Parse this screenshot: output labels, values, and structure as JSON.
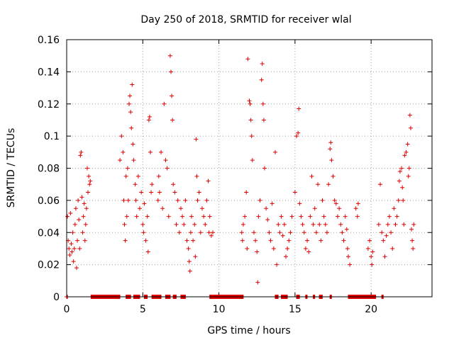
{
  "chart_data": {
    "type": "scatter",
    "title": "Day 250 of 2018, SRMTID for receiver wlal",
    "xlabel": "GPS time / hours",
    "ylabel": "SRMTID / TECUs",
    "xlim": [
      0,
      24
    ],
    "ylim": [
      0,
      0.16
    ],
    "x_ticks": [
      0,
      5,
      10,
      15,
      20
    ],
    "x_tick_labels": [
      "0",
      "5",
      "10",
      "15",
      "20"
    ],
    "y_ticks": [
      0,
      0.02,
      0.04,
      0.06,
      0.08,
      0.1,
      0.12,
      0.14,
      0.16
    ],
    "y_tick_labels": [
      "0",
      "0.02",
      "0.04",
      "0.06",
      "0.08",
      "0.1",
      "0.12",
      "0.14",
      "0.16"
    ],
    "grid": true,
    "marker": "+",
    "color": "#dd0000",
    "series": [
      {
        "name": "SRMTID",
        "points": [
          [
            0.0,
            0.0
          ],
          [
            0.05,
            0.05
          ],
          [
            0.1,
            0.035
          ],
          [
            0.15,
            0.03
          ],
          [
            0.2,
            0.026
          ],
          [
            0.25,
            0.052
          ],
          [
            0.3,
            0.033
          ],
          [
            0.35,
            0.028
          ],
          [
            0.4,
            0.04
          ],
          [
            0.45,
            0.022
          ],
          [
            0.5,
            0.03
          ],
          [
            0.55,
            0.045
          ],
          [
            0.6,
            0.055
          ],
          [
            0.65,
            0.018
          ],
          [
            0.7,
            0.035
          ],
          [
            0.75,
            0.06
          ],
          [
            0.8,
            0.048
          ],
          [
            0.85,
            0.03
          ],
          [
            0.9,
            0.088
          ],
          [
            0.95,
            0.09
          ],
          [
            1.0,
            0.062
          ],
          [
            1.05,
            0.04
          ],
          [
            1.1,
            0.05
          ],
          [
            1.15,
            0.058
          ],
          [
            1.2,
            0.035
          ],
          [
            1.25,
            0.045
          ],
          [
            1.3,
            0.055
          ],
          [
            1.35,
            0.08
          ],
          [
            1.4,
            0.065
          ],
          [
            1.45,
            0.075
          ],
          [
            1.5,
            0.07
          ],
          [
            1.55,
            0.072
          ],
          [
            3.5,
            0.085
          ],
          [
            3.6,
            0.1
          ],
          [
            3.7,
            0.09
          ],
          [
            3.75,
            0.06
          ],
          [
            3.8,
            0.045
          ],
          [
            3.85,
            0.035
          ],
          [
            3.9,
            0.075
          ],
          [
            3.95,
            0.05
          ],
          [
            4.0,
            0.08
          ],
          [
            4.05,
            0.06
          ],
          [
            4.1,
            0.12
          ],
          [
            4.15,
            0.125
          ],
          [
            4.2,
            0.115
          ],
          [
            4.25,
            0.105
          ],
          [
            4.3,
            0.132
          ],
          [
            4.35,
            0.095
          ],
          [
            4.4,
            0.085
          ],
          [
            4.5,
            0.07
          ],
          [
            4.55,
            0.06
          ],
          [
            4.6,
            0.05
          ],
          [
            4.7,
            0.075
          ],
          [
            4.8,
            0.055
          ],
          [
            4.9,
            0.065
          ],
          [
            5.0,
            0.045
          ],
          [
            5.05,
            0.04
          ],
          [
            5.1,
            0.058
          ],
          [
            5.2,
            0.035
          ],
          [
            5.3,
            0.05
          ],
          [
            5.35,
            0.028
          ],
          [
            5.4,
            0.11
          ],
          [
            5.45,
            0.112
          ],
          [
            5.5,
            0.09
          ],
          [
            5.55,
            0.065
          ],
          [
            5.6,
            0.07
          ],
          [
            6.0,
            0.06
          ],
          [
            6.05,
            0.075
          ],
          [
            6.1,
            0.065
          ],
          [
            6.2,
            0.09
          ],
          [
            6.3,
            0.055
          ],
          [
            6.4,
            0.12
          ],
          [
            6.5,
            0.085
          ],
          [
            6.6,
            0.08
          ],
          [
            6.7,
            0.05
          ],
          [
            6.8,
            0.15
          ],
          [
            6.85,
            0.14
          ],
          [
            6.9,
            0.125
          ],
          [
            6.95,
            0.11
          ],
          [
            7.0,
            0.07
          ],
          [
            7.1,
            0.065
          ],
          [
            7.2,
            0.045
          ],
          [
            7.3,
            0.06
          ],
          [
            7.4,
            0.04
          ],
          [
            7.5,
            0.055
          ],
          [
            7.6,
            0.05
          ],
          [
            7.7,
            0.045
          ],
          [
            7.8,
            0.06
          ],
          [
            7.9,
            0.035
          ],
          [
            8.0,
            0.03
          ],
          [
            8.05,
            0.022
          ],
          [
            8.1,
            0.016
          ],
          [
            8.15,
            0.04
          ],
          [
            8.2,
            0.05
          ],
          [
            8.3,
            0.035
          ],
          [
            8.4,
            0.045
          ],
          [
            8.45,
            0.025
          ],
          [
            8.5,
            0.098
          ],
          [
            8.55,
            0.075
          ],
          [
            8.6,
            0.06
          ],
          [
            8.7,
            0.065
          ],
          [
            8.8,
            0.04
          ],
          [
            8.9,
            0.055
          ],
          [
            9.0,
            0.05
          ],
          [
            9.1,
            0.045
          ],
          [
            9.2,
            0.06
          ],
          [
            9.3,
            0.072
          ],
          [
            9.35,
            0.04
          ],
          [
            9.4,
            0.05
          ],
          [
            9.5,
            0.038
          ],
          [
            9.6,
            0.04
          ],
          [
            11.5,
            0.04
          ],
          [
            11.55,
            0.035
          ],
          [
            11.6,
            0.045
          ],
          [
            11.7,
            0.05
          ],
          [
            11.8,
            0.065
          ],
          [
            11.85,
            0.03
          ],
          [
            11.9,
            0.148
          ],
          [
            12.0,
            0.122
          ],
          [
            12.05,
            0.12
          ],
          [
            12.1,
            0.11
          ],
          [
            12.15,
            0.1
          ],
          [
            12.2,
            0.085
          ],
          [
            12.3,
            0.04
          ],
          [
            12.4,
            0.035
          ],
          [
            12.5,
            0.028
          ],
          [
            12.55,
            0.009
          ],
          [
            12.6,
            0.05
          ],
          [
            12.7,
            0.06
          ],
          [
            12.8,
            0.135
          ],
          [
            12.85,
            0.145
          ],
          [
            12.9,
            0.12
          ],
          [
            12.95,
            0.11
          ],
          [
            13.0,
            0.08
          ],
          [
            13.1,
            0.055
          ],
          [
            13.2,
            0.048
          ],
          [
            13.3,
            0.04
          ],
          [
            13.4,
            0.035
          ],
          [
            13.5,
            0.058
          ],
          [
            13.6,
            0.03
          ],
          [
            13.7,
            0.09
          ],
          [
            13.8,
            0.02
          ],
          [
            13.9,
            0.045
          ],
          [
            14.0,
            0.04
          ],
          [
            14.1,
            0.05
          ],
          [
            14.2,
            0.038
          ],
          [
            14.3,
            0.045
          ],
          [
            14.4,
            0.025
          ],
          [
            14.5,
            0.03
          ],
          [
            14.6,
            0.035
          ],
          [
            14.7,
            0.04
          ],
          [
            14.8,
            0.05
          ],
          [
            15.0,
            0.065
          ],
          [
            15.1,
            0.1
          ],
          [
            15.2,
            0.102
          ],
          [
            15.25,
            0.117
          ],
          [
            15.3,
            0.058
          ],
          [
            15.4,
            0.05
          ],
          [
            15.5,
            0.045
          ],
          [
            15.6,
            0.04
          ],
          [
            15.7,
            0.03
          ],
          [
            15.8,
            0.035
          ],
          [
            15.9,
            0.028
          ],
          [
            16.0,
            0.05
          ],
          [
            16.1,
            0.075
          ],
          [
            16.2,
            0.045
          ],
          [
            16.3,
            0.055
          ],
          [
            16.4,
            0.04
          ],
          [
            16.5,
            0.07
          ],
          [
            16.6,
            0.045
          ],
          [
            16.7,
            0.035
          ],
          [
            16.8,
            0.06
          ],
          [
            16.9,
            0.05
          ],
          [
            17.0,
            0.045
          ],
          [
            17.1,
            0.04
          ],
          [
            17.2,
            0.07
          ],
          [
            17.3,
            0.092
          ],
          [
            17.35,
            0.096
          ],
          [
            17.4,
            0.085
          ],
          [
            17.5,
            0.075
          ],
          [
            17.6,
            0.06
          ],
          [
            17.7,
            0.058
          ],
          [
            17.8,
            0.05
          ],
          [
            17.9,
            0.055
          ],
          [
            18.0,
            0.045
          ],
          [
            18.1,
            0.04
          ],
          [
            18.2,
            0.035
          ],
          [
            18.3,
            0.05
          ],
          [
            18.4,
            0.042
          ],
          [
            18.45,
            0.03
          ],
          [
            18.5,
            0.025
          ],
          [
            18.6,
            0.02
          ],
          [
            19.0,
            0.055
          ],
          [
            19.1,
            0.05
          ],
          [
            19.15,
            0.058
          ],
          [
            19.8,
            0.03
          ],
          [
            19.9,
            0.035
          ],
          [
            20.0,
            0.025
          ],
          [
            20.05,
            0.02
          ],
          [
            20.1,
            0.028
          ],
          [
            20.5,
            0.045
          ],
          [
            20.6,
            0.07
          ],
          [
            20.7,
            0.04
          ],
          [
            20.8,
            0.035
          ],
          [
            20.9,
            0.025
          ],
          [
            21.0,
            0.038
          ],
          [
            21.1,
            0.045
          ],
          [
            21.2,
            0.05
          ],
          [
            21.3,
            0.04
          ],
          [
            21.4,
            0.03
          ],
          [
            21.5,
            0.055
          ],
          [
            21.6,
            0.045
          ],
          [
            21.7,
            0.05
          ],
          [
            21.8,
            0.06
          ],
          [
            21.85,
            0.072
          ],
          [
            21.9,
            0.078
          ],
          [
            22.0,
            0.08
          ],
          [
            22.05,
            0.068
          ],
          [
            22.1,
            0.06
          ],
          [
            22.15,
            0.045
          ],
          [
            22.2,
            0.088
          ],
          [
            22.3,
            0.09
          ],
          [
            22.4,
            0.095
          ],
          [
            22.45,
            0.075
          ],
          [
            22.5,
            0.08
          ],
          [
            22.55,
            0.113
          ],
          [
            22.6,
            0.105
          ],
          [
            22.65,
            0.042
          ],
          [
            22.7,
            0.035
          ],
          [
            22.75,
            0.03
          ],
          [
            22.8,
            0.045
          ]
        ],
        "zero_segments": [
          [
            0.0,
            0.05
          ],
          [
            1.6,
            3.5
          ],
          [
            3.9,
            4.2
          ],
          [
            4.4,
            4.8
          ],
          [
            5.1,
            5.3
          ],
          [
            5.6,
            6.2
          ],
          [
            6.5,
            6.8
          ],
          [
            7.0,
            7.2
          ],
          [
            7.5,
            7.8
          ],
          [
            9.4,
            11.6
          ],
          [
            13.7,
            13.9
          ],
          [
            14.1,
            14.5
          ],
          [
            15.1,
            15.3
          ],
          [
            15.7,
            15.8
          ],
          [
            16.2,
            16.3
          ],
          [
            16.6,
            16.8
          ],
          [
            17.3,
            17.4
          ],
          [
            18.5,
            20.3
          ],
          [
            20.7,
            20.8
          ]
        ]
      }
    ]
  }
}
